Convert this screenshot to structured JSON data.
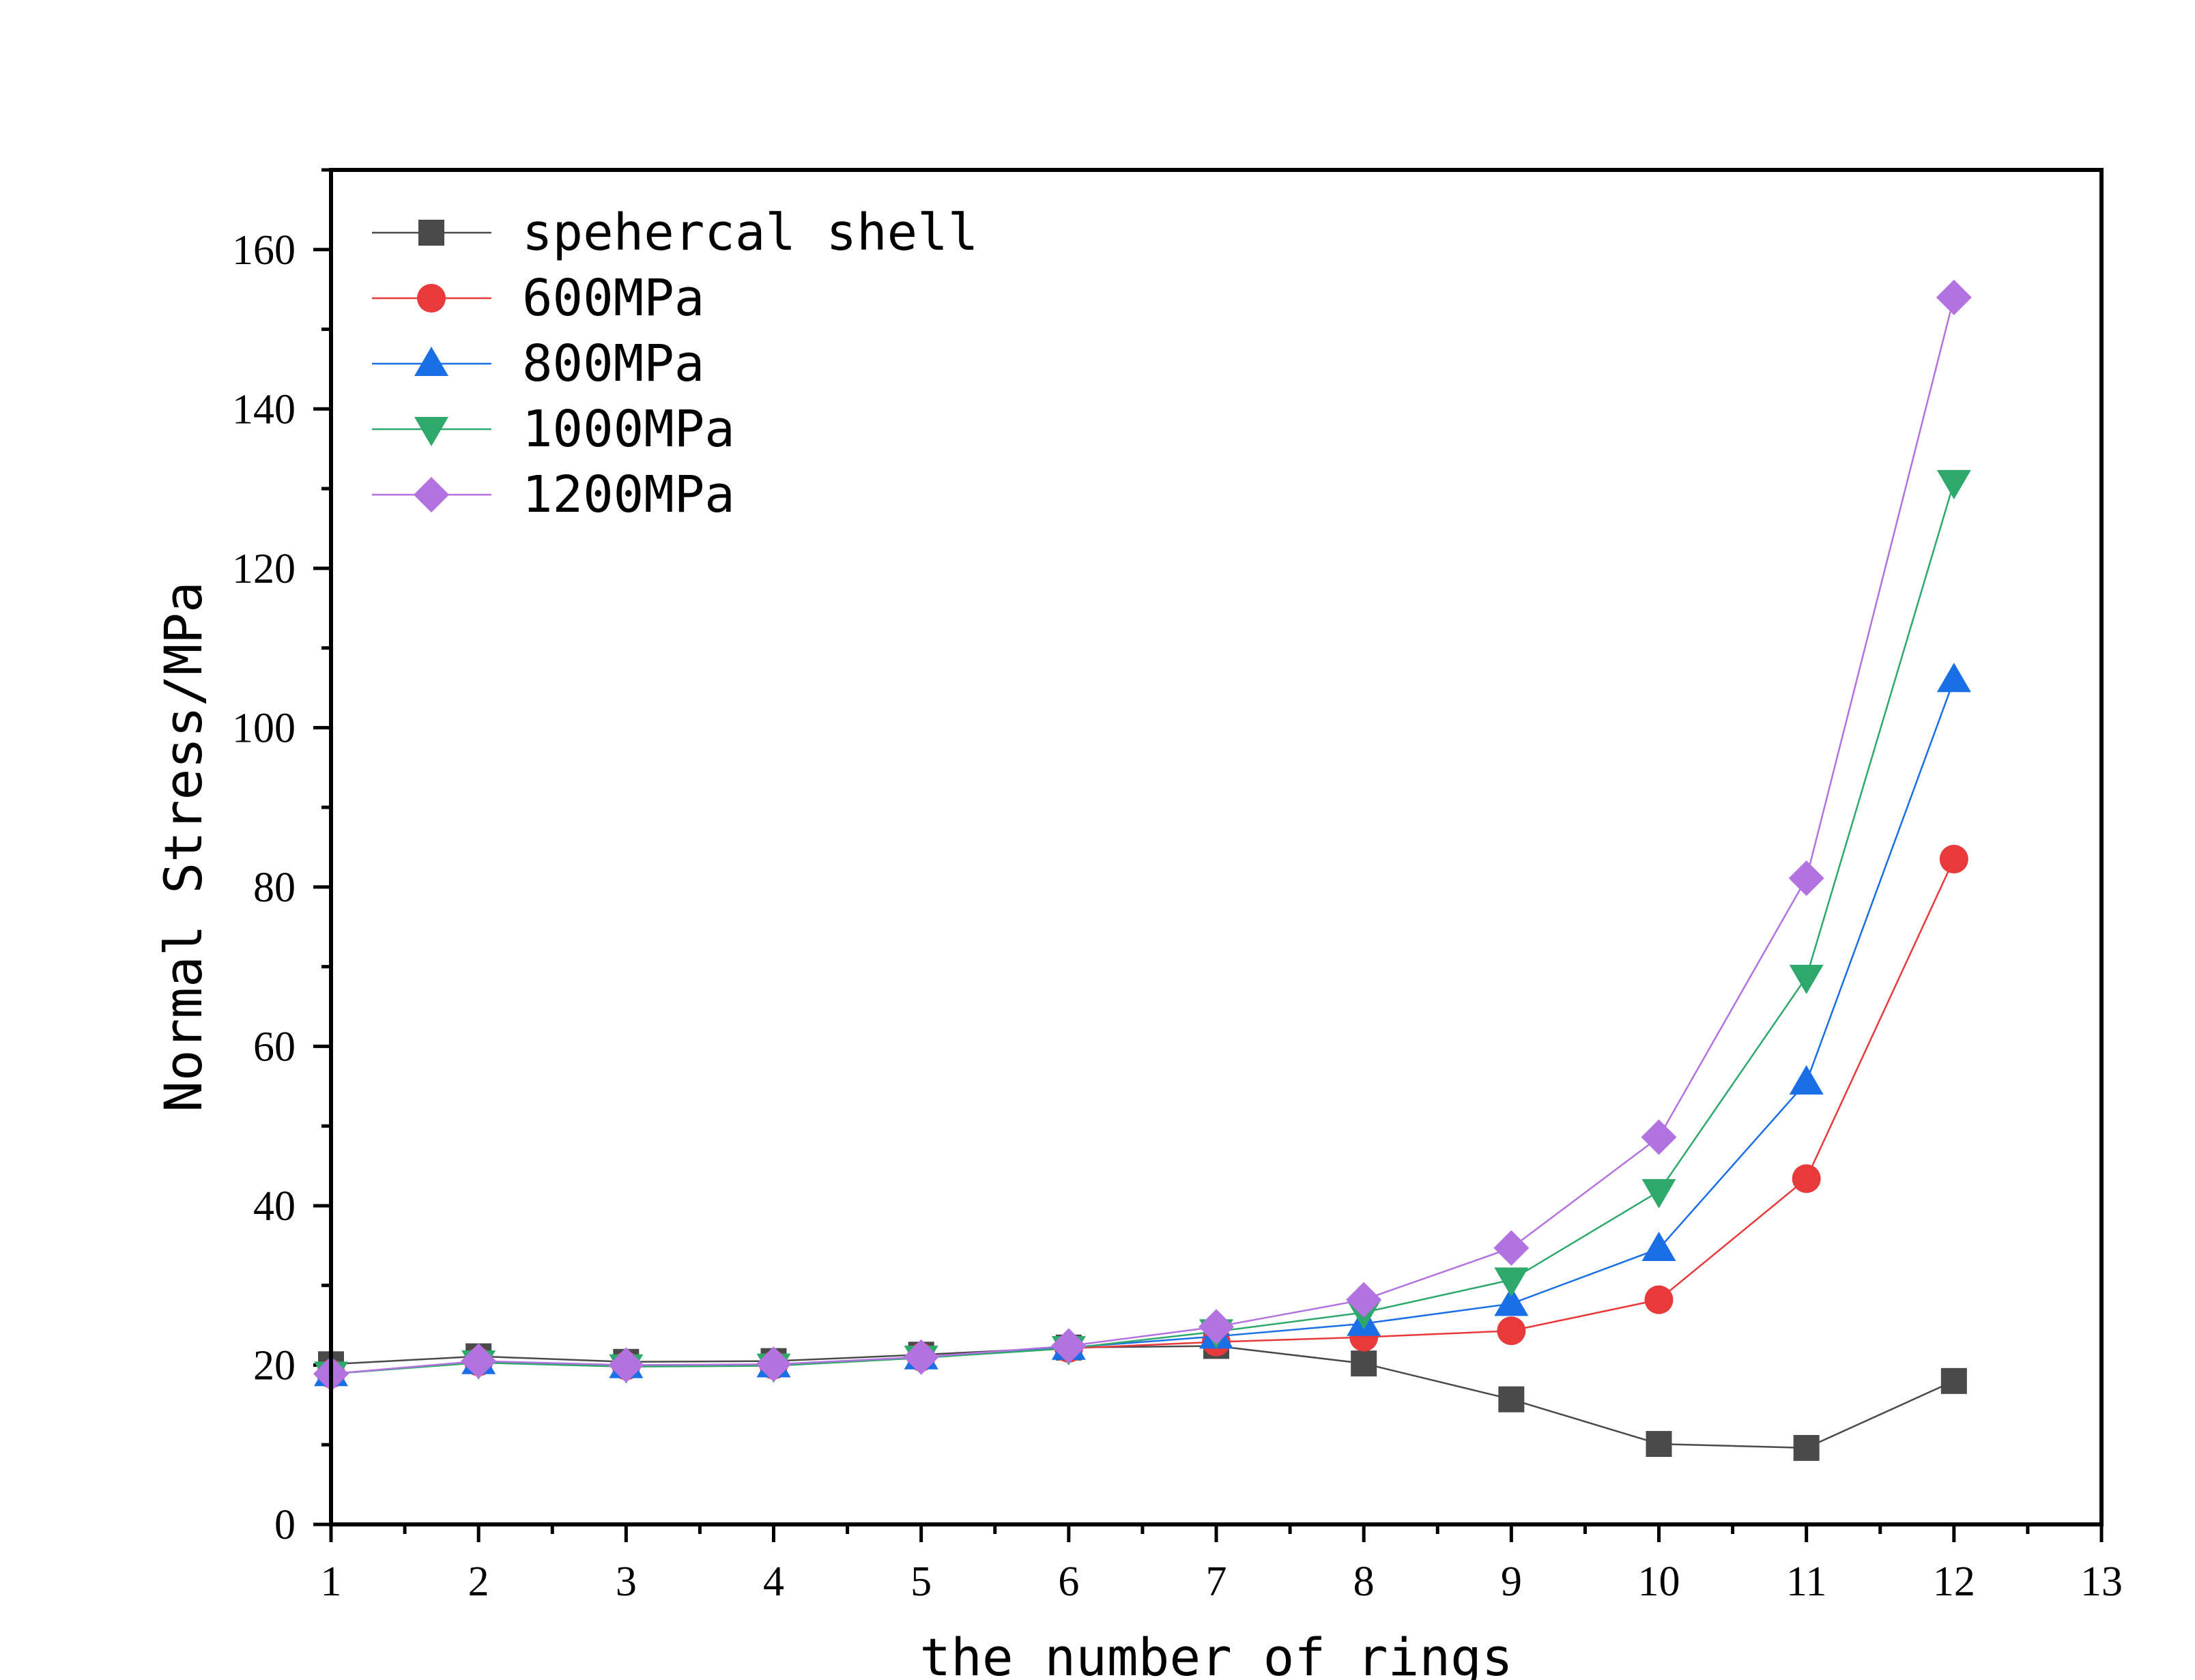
{
  "chart_data": {
    "type": "line",
    "xlabel": "the number of rings",
    "ylabel": "Normal Stress/MPa",
    "xlim": [
      1,
      13
    ],
    "ylim": [
      0,
      170
    ],
    "x_ticks": [
      1,
      2,
      3,
      4,
      5,
      6,
      7,
      8,
      9,
      10,
      11,
      12,
      13
    ],
    "y_ticks": [
      0,
      20,
      40,
      60,
      80,
      100,
      120,
      140,
      160
    ],
    "grid": false,
    "legend_position": "top-left",
    "x": [
      1,
      2,
      3,
      4,
      5,
      6,
      7,
      8,
      9,
      10,
      11,
      12
    ],
    "series": [
      {
        "name": "spehercal shell",
        "marker": "square",
        "color": "#4a4a4a",
        "values": [
          20.1,
          21.1,
          20.4,
          20.5,
          21.3,
          22.2,
          22.4,
          20.2,
          15.7,
          10.1,
          9.6,
          18.0
        ]
      },
      {
        "name": "600MPa",
        "marker": "circle",
        "color": "#e8393b",
        "values": [
          18.9,
          20.4,
          19.9,
          20.0,
          21.0,
          22.1,
          22.9,
          23.5,
          24.3,
          28.2,
          43.4,
          83.5
        ]
      },
      {
        "name": "800MPa",
        "marker": "triangle-up",
        "color": "#1a6ee6",
        "values": [
          18.9,
          20.4,
          19.9,
          20.0,
          21.0,
          22.2,
          23.6,
          25.2,
          27.7,
          34.6,
          55.5,
          106.0
        ]
      },
      {
        "name": "1000MPa",
        "marker": "triangle-down",
        "color": "#2ea86b",
        "values": [
          18.9,
          20.3,
          19.8,
          19.9,
          20.9,
          22.1,
          24.2,
          26.6,
          30.7,
          41.8,
          68.7,
          130.8
        ]
      },
      {
        "name": "1200MPa",
        "marker": "diamond",
        "color": "#b272e0",
        "values": [
          18.9,
          20.5,
          20.0,
          20.1,
          21.0,
          22.4,
          24.8,
          28.2,
          34.7,
          48.6,
          81.1,
          154.0
        ]
      }
    ]
  }
}
